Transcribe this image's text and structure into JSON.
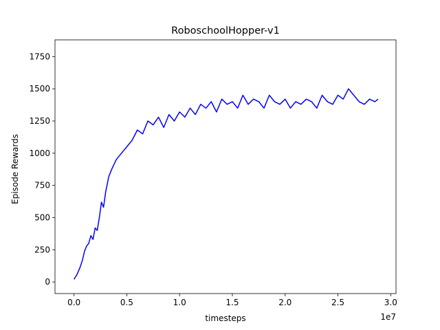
{
  "chart_data": {
    "type": "line",
    "title": "RoboschoolHopper-v1",
    "xlabel": "timesteps",
    "ylabel": "Episode Rewards",
    "x_offset_label": "1e7",
    "xlim": [
      -0.18,
      3.05
    ],
    "ylim": [
      -90,
      1880
    ],
    "xticks": [
      0.0,
      0.5,
      1.0,
      1.5,
      2.0,
      2.5,
      3.0
    ],
    "xtick_labels": [
      "0.0",
      "0.5",
      "1.0",
      "1.5",
      "2.0",
      "2.5",
      "3.0"
    ],
    "yticks": [
      0,
      250,
      500,
      750,
      1000,
      1250,
      1500,
      1750
    ],
    "ytick_labels": [
      "0",
      "250",
      "500",
      "750",
      "1000",
      "1250",
      "1500",
      "1750"
    ],
    "grid": false,
    "legend": "none",
    "line_color": "#0000ff",
    "series": [
      {
        "x": [
          0.0,
          0.03,
          0.06,
          0.08,
          0.1,
          0.12,
          0.14,
          0.16,
          0.18,
          0.2,
          0.22,
          0.24,
          0.26,
          0.28,
          0.3,
          0.33,
          0.36,
          0.4,
          0.45,
          0.5,
          0.55,
          0.6,
          0.65,
          0.7,
          0.75,
          0.8,
          0.85,
          0.9,
          0.95,
          1.0,
          1.05,
          1.1,
          1.15,
          1.2,
          1.25,
          1.3,
          1.35,
          1.4,
          1.45,
          1.5,
          1.55,
          1.6,
          1.65,
          1.7,
          1.75,
          1.8,
          1.85,
          1.9,
          1.95,
          2.0,
          2.05,
          2.1,
          2.15,
          2.2,
          2.25,
          2.3,
          2.35,
          2.4,
          2.45,
          2.5,
          2.55,
          2.6,
          2.65,
          2.7,
          2.75,
          2.8,
          2.85,
          2.88
        ],
        "y": [
          20,
          60,
          120,
          170,
          240,
          280,
          300,
          360,
          330,
          420,
          400,
          500,
          620,
          580,
          700,
          820,
          880,
          950,
          1000,
          1050,
          1100,
          1180,
          1150,
          1250,
          1220,
          1280,
          1200,
          1300,
          1250,
          1320,
          1280,
          1350,
          1300,
          1380,
          1350,
          1400,
          1320,
          1420,
          1380,
          1400,
          1350,
          1450,
          1380,
          1420,
          1400,
          1350,
          1450,
          1400,
          1380,
          1420,
          1350,
          1400,
          1380,
          1420,
          1400,
          1350,
          1450,
          1400,
          1380,
          1450,
          1420,
          1500,
          1450,
          1400,
          1380,
          1420,
          1400,
          1420
        ]
      }
    ]
  }
}
